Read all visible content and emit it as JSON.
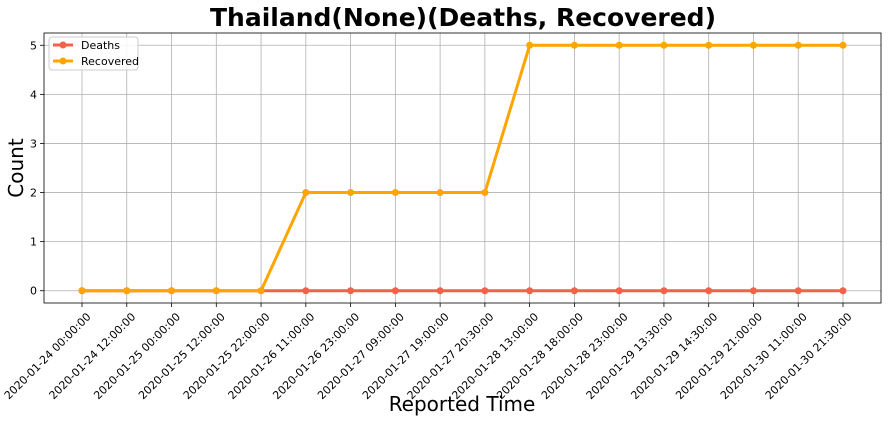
{
  "chart_data": {
    "type": "line",
    "title": "Thailand(None)(Deaths, Recovered)",
    "xlabel": "Reported Time",
    "ylabel": "Count",
    "x": [
      "2020-01-24 00:00:00",
      "2020-01-24 12:00:00",
      "2020-01-25 00:00:00",
      "2020-01-25 12:00:00",
      "2020-01-25 22:00:00",
      "2020-01-26 11:00:00",
      "2020-01-26 23:00:00",
      "2020-01-27 09:00:00",
      "2020-01-27 19:00:00",
      "2020-01-27 20:30:00",
      "2020-01-28 13:00:00",
      "2020-01-28 18:00:00",
      "2020-01-28 23:00:00",
      "2020-01-29 13:30:00",
      "2020-01-29 14:30:00",
      "2020-01-29 21:00:00",
      "2020-01-30 11:00:00",
      "2020-01-30 21:30:00"
    ],
    "series": [
      {
        "name": "Deaths",
        "color": "#f4604a",
        "values": [
          0,
          0,
          0,
          0,
          0,
          0,
          0,
          0,
          0,
          0,
          0,
          0,
          0,
          0,
          0,
          0,
          0,
          0
        ]
      },
      {
        "name": "Recovered",
        "color": "#ffa500",
        "values": [
          0,
          0,
          0,
          0,
          0,
          2,
          2,
          2,
          2,
          2,
          5,
          5,
          5,
          5,
          5,
          5,
          5,
          5
        ]
      }
    ],
    "yticks": [
      0,
      1,
      2,
      3,
      4,
      5
    ],
    "ylim": [
      -0.25,
      5.25
    ],
    "grid": true,
    "legend_position": "upper-left"
  }
}
